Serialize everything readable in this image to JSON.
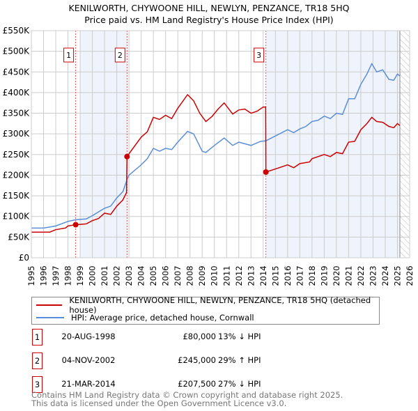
{
  "chart_data": {
    "type": "line",
    "title": "KENILWORTH, CHYWOONE HILL, NEWLYN, PENZANCE, TR18 5HQ",
    "subtitle": "Price paid vs. HM Land Registry's House Price Index (HPI)",
    "xlim": [
      1995,
      2026
    ],
    "ylim": [
      0,
      550000
    ],
    "x_ticks": [
      "1995",
      "1996",
      "1997",
      "1998",
      "1999",
      "2000",
      "2001",
      "2002",
      "2003",
      "2004",
      "2005",
      "2006",
      "2007",
      "2008",
      "2009",
      "2010",
      "2011",
      "2012",
      "2013",
      "2014",
      "2015",
      "2016",
      "2017",
      "2018",
      "2019",
      "2020",
      "2021",
      "2022",
      "2023",
      "2024",
      "2025",
      "2026"
    ],
    "y_ticks": [
      {
        "v": 0,
        "label": "£0"
      },
      {
        "v": 50000,
        "label": "£50K"
      },
      {
        "v": 100000,
        "label": "£100K"
      },
      {
        "v": 150000,
        "label": "£150K"
      },
      {
        "v": 200000,
        "label": "£200K"
      },
      {
        "v": 250000,
        "label": "£250K"
      },
      {
        "v": 300000,
        "label": "£300K"
      },
      {
        "v": 350000,
        "label": "£350K"
      },
      {
        "v": 400000,
        "label": "£400K"
      },
      {
        "v": 450000,
        "label": "£450K"
      },
      {
        "v": 500000,
        "label": "£500K"
      },
      {
        "v": 550000,
        "label": "£550K"
      }
    ],
    "grid": true,
    "data_end": 2025.2,
    "shaded_ranges": [
      [
        1999.0,
        2002.9
      ],
      [
        2014.22,
        2025.2
      ]
    ],
    "series": [
      {
        "name": "KENILWORTH, CHYWOONE HILL, NEWLYN, PENZANCE, TR18 5HQ (detached house)",
        "color": "#cc0000",
        "x": [
          1995,
          1996,
          1996.5,
          1997,
          1997.8,
          1998,
          1998.63,
          1999.5,
          2000,
          2000.5,
          2001,
          2001.5,
          2002,
          2002.5,
          2002.8,
          2002.84,
          2003.2,
          2004,
          2004.5,
          2005,
          2005.5,
          2006,
          2006.5,
          2007,
          2007.8,
          2008.3,
          2008.8,
          2009.3,
          2009.8,
          2010.3,
          2010.8,
          2011.5,
          2012,
          2012.5,
          2013,
          2013.5,
          2014,
          2014.2,
          2014.22,
          2015,
          2016,
          2016.5,
          2017,
          2017.8,
          2018,
          2019,
          2019.5,
          2020,
          2020.5,
          2021,
          2021.5,
          2022,
          2022.5,
          2022.9,
          2023.3,
          2023.8,
          2024.3,
          2024.7,
          2025,
          2025.2
        ],
        "y": [
          62,
          62,
          62,
          68,
          72,
          77,
          80,
          82,
          90,
          95,
          108,
          105,
          125,
          140,
          158,
          245,
          260,
          292,
          305,
          340,
          335,
          345,
          337,
          362,
          395,
          380,
          350,
          330,
          342,
          360,
          375,
          348,
          358,
          360,
          350,
          355,
          365,
          365,
          207.5,
          215,
          225,
          218,
          228,
          232,
          240,
          250,
          245,
          255,
          252,
          280,
          282,
          310,
          325,
          340,
          330,
          328,
          318,
          315,
          325,
          320
        ]
      },
      {
        "name": "HPI: Average price, detached house, Cornwall",
        "color": "#5b8ed6",
        "x": [
          1995,
          1996,
          1997,
          1998,
          1998.6,
          1999.5,
          2000,
          2001,
          2001.5,
          2002,
          2002.5,
          2002.85,
          2003,
          2004,
          2004.5,
          2005,
          2005.5,
          2006,
          2006.5,
          2007,
          2007.8,
          2008.3,
          2009,
          2009.3,
          2010,
          2010.8,
          2011.5,
          2012,
          2012.5,
          2013,
          2013.8,
          2014.2,
          2015,
          2016,
          2016.5,
          2017,
          2017.5,
          2018,
          2018.5,
          2019,
          2019.5,
          2020,
          2020.5,
          2021,
          2021.5,
          2022,
          2022.5,
          2022.9,
          2023.3,
          2023.8,
          2024.3,
          2024.7,
          2025,
          2025.2
        ],
        "y": [
          72,
          72,
          77,
          88,
          92,
          94,
          102,
          120,
          125,
          145,
          160,
          190,
          200,
          225,
          240,
          265,
          258,
          265,
          262,
          280,
          306,
          300,
          258,
          255,
          272,
          290,
          272,
          280,
          276,
          272,
          282,
          283,
          295,
          310,
          303,
          312,
          318,
          330,
          333,
          343,
          337,
          350,
          347,
          385,
          385,
          420,
          445,
          470,
          450,
          455,
          432,
          430,
          445,
          440
        ]
      }
    ],
    "y_units": "thousand GBP",
    "sales": [
      {
        "num": "1",
        "x": 1998.63,
        "value": 80,
        "date": "20-AUG-1998",
        "price": "£80,000",
        "hpi": "13% ↓ HPI"
      },
      {
        "num": "2",
        "x": 2002.84,
        "value": 245,
        "date": "04-NOV-2002",
        "price": "£245,000",
        "hpi": "29% ↑ HPI"
      },
      {
        "num": "3",
        "x": 2014.22,
        "value": 207.5,
        "date": "21-MAR-2014",
        "price": "£207,500",
        "hpi": "27% ↓ HPI"
      }
    ],
    "legend_position": "below"
  },
  "footer": [
    "Contains HM Land Registry data © Crown copyright and database right 2025.",
    "This data is licensed under the Open Government Licence v3.0."
  ]
}
